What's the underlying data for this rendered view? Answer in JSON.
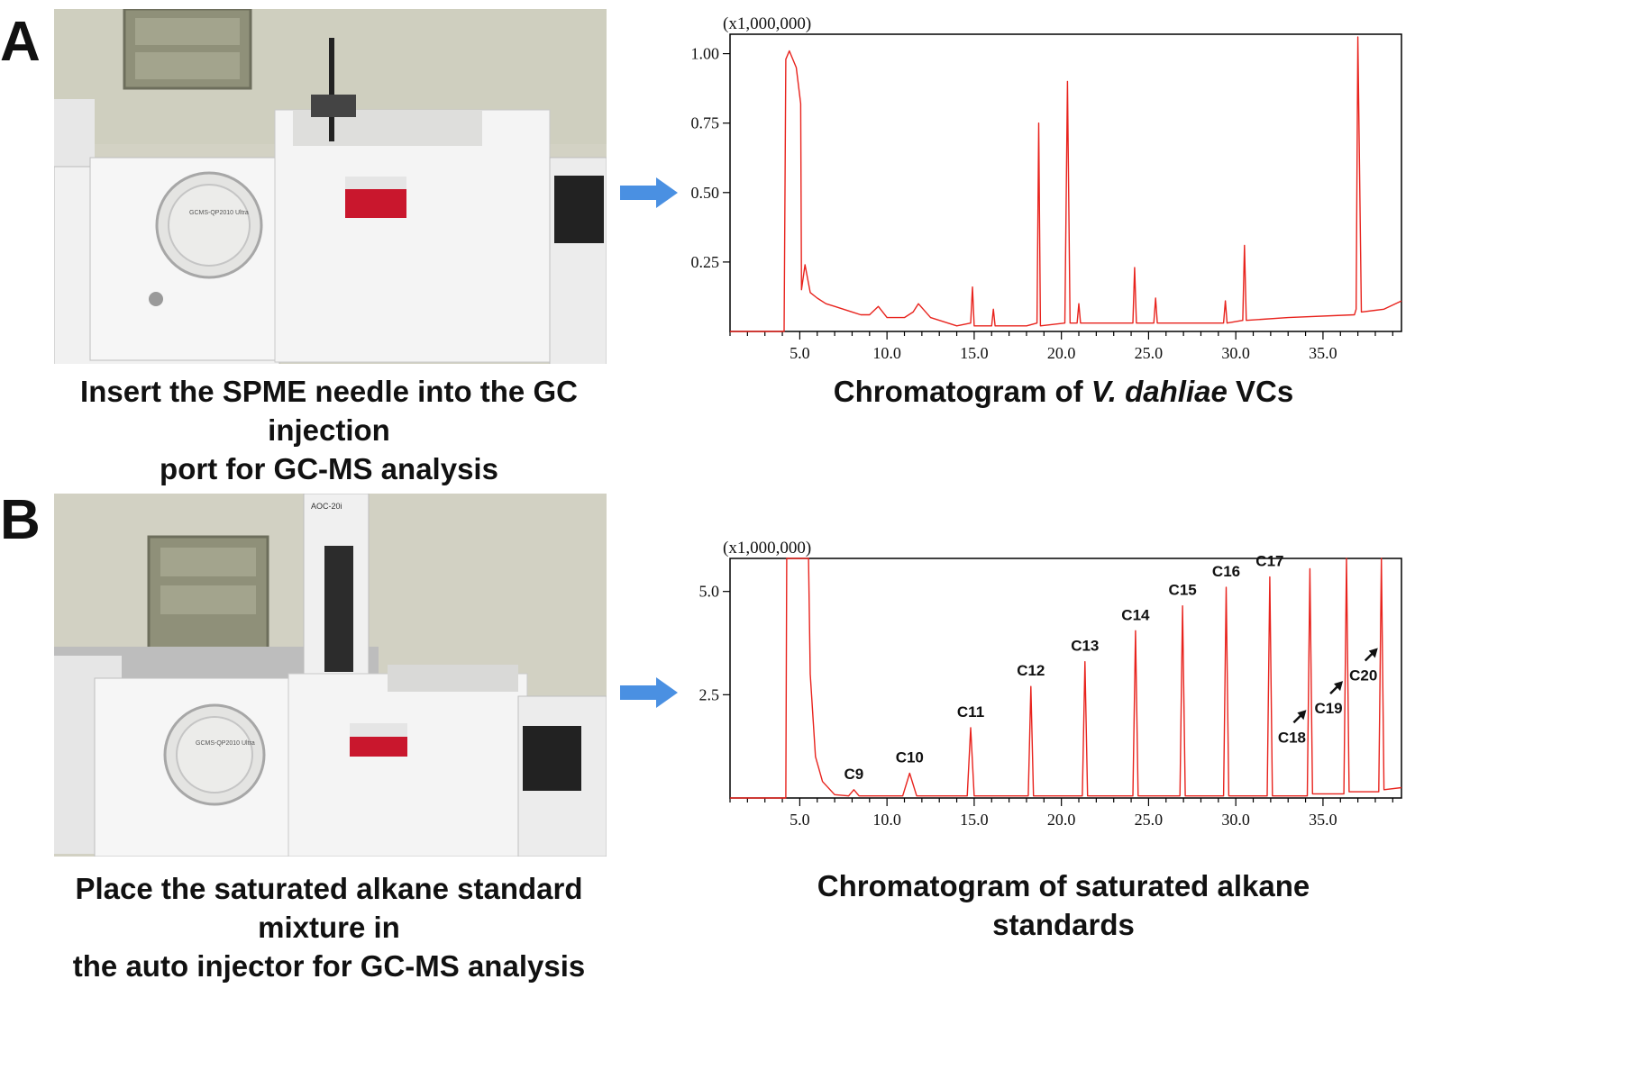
{
  "panels": [
    {
      "letter": "A",
      "photo_caption_line1": "Insert the SPME needle into the GC injection",
      "photo_caption_line2": "port for GC-MS analysis",
      "photo_labels": {
        "front_label": "GCMS-QP2010 Ultra"
      },
      "chart_caption_prefix": "Chromatogram of",
      "chart_caption_italic": "V. dahliae",
      "chart_caption_suffix": "VCs"
    },
    {
      "letter": "B",
      "photo_caption_line1": "Place the saturated alkane standard mixture in",
      "photo_caption_line2": "the auto injector for GC-MS analysis",
      "photo_labels": {
        "front_label": "GCMS-QP2010 Ultra",
        "injector_label": "AOC-20i"
      },
      "chart_caption": "Chromatogram of saturated alkane standards"
    }
  ],
  "colors": {
    "trace": "#e8231d",
    "arrow": "#4a90e2",
    "axis": "#000000"
  },
  "chart_data": [
    {
      "type": "line",
      "title": "",
      "scale_label": "(x1,000,000)",
      "xlim": [
        1.0,
        39.5
      ],
      "ylim": [
        0.0,
        1.07
      ],
      "xticks": [
        5.0,
        10.0,
        15.0,
        20.0,
        25.0,
        30.0,
        35.0
      ],
      "xtick_labels": [
        "5.0",
        "10.0",
        "15.0",
        "20.0",
        "25.0",
        "30.0",
        "35.0"
      ],
      "yticks": [
        0.25,
        0.5,
        0.75,
        1.0
      ],
      "ytick_labels": [
        "0.25",
        "0.50",
        "0.75",
        "1.00"
      ],
      "series": [
        {
          "x": [
            1.0,
            4.1,
            4.2,
            4.4,
            4.8,
            5.05,
            5.1,
            5.3,
            5.6,
            6.0,
            6.5,
            7.0,
            7.5,
            8.0,
            8.5,
            9.0,
            9.5,
            10.0,
            11.0,
            11.5,
            11.8,
            12.5,
            14.0,
            14.8,
            14.9,
            15.0,
            16.0,
            16.1,
            16.2,
            18.0,
            18.6,
            18.7,
            18.8,
            20.2,
            20.35,
            20.5,
            20.9,
            21.0,
            21.1,
            24.1,
            24.2,
            24.3,
            25.3,
            25.4,
            25.5,
            29.3,
            29.4,
            29.5,
            30.4,
            30.5,
            30.6,
            33.0,
            36.8,
            36.9,
            37.0,
            37.2,
            38.5,
            39.5
          ],
          "y": [
            0.0,
            0.0,
            0.98,
            1.01,
            0.95,
            0.82,
            0.15,
            0.24,
            0.14,
            0.12,
            0.1,
            0.09,
            0.08,
            0.07,
            0.06,
            0.06,
            0.09,
            0.05,
            0.05,
            0.07,
            0.1,
            0.05,
            0.02,
            0.03,
            0.16,
            0.02,
            0.02,
            0.08,
            0.02,
            0.02,
            0.03,
            0.75,
            0.02,
            0.03,
            0.9,
            0.03,
            0.03,
            0.1,
            0.03,
            0.03,
            0.23,
            0.03,
            0.03,
            0.12,
            0.03,
            0.03,
            0.11,
            0.03,
            0.04,
            0.31,
            0.04,
            0.05,
            0.06,
            0.08,
            1.06,
            0.07,
            0.08,
            0.11
          ]
        }
      ]
    },
    {
      "type": "line",
      "title": "",
      "scale_label": "(x1,000,000)",
      "xlim": [
        1.0,
        39.5
      ],
      "ylim": [
        0.0,
        5.8
      ],
      "xticks": [
        5.0,
        10.0,
        15.0,
        20.0,
        25.0,
        30.0,
        35.0
      ],
      "xtick_labels": [
        "5.0",
        "10.0",
        "15.0",
        "20.0",
        "25.0",
        "30.0",
        "35.0"
      ],
      "yticks": [
        2.5,
        5.0
      ],
      "ytick_labels": [
        "2.5",
        "5.0"
      ],
      "series": [
        {
          "x": [
            1.0,
            4.2,
            4.25,
            4.3,
            5.4,
            5.5,
            5.6,
            5.9,
            6.3,
            7.0,
            7.8,
            8.1,
            8.4,
            10.9,
            11.3,
            11.7,
            14.6,
            14.8,
            15.0,
            18.1,
            18.25,
            18.4,
            21.2,
            21.35,
            21.5,
            24.1,
            24.25,
            24.4,
            26.8,
            26.95,
            27.1,
            29.3,
            29.45,
            29.6,
            31.8,
            31.95,
            32.1,
            34.1,
            34.25,
            34.4,
            36.2,
            36.35,
            36.5,
            38.2,
            38.35,
            38.5,
            39.5
          ],
          "y": [
            0.0,
            0.0,
            5.9,
            5.9,
            5.9,
            5.9,
            3.0,
            1.0,
            0.4,
            0.08,
            0.05,
            0.2,
            0.05,
            0.05,
            0.6,
            0.05,
            0.05,
            1.7,
            0.05,
            0.05,
            2.7,
            0.05,
            0.05,
            3.3,
            0.05,
            0.05,
            4.05,
            0.05,
            0.05,
            4.65,
            0.05,
            0.05,
            5.1,
            0.05,
            0.05,
            5.35,
            0.05,
            0.05,
            5.55,
            0.1,
            0.1,
            5.9,
            0.15,
            0.15,
            5.9,
            0.2,
            0.25
          ]
        }
      ],
      "annotations": [
        {
          "label": "C9",
          "x": 8.1,
          "y": 0.2
        },
        {
          "label": "C10",
          "x": 11.3,
          "y": 0.6
        },
        {
          "label": "C11",
          "x": 14.8,
          "y": 1.7
        },
        {
          "label": "C12",
          "x": 18.25,
          "y": 2.7
        },
        {
          "label": "C13",
          "x": 21.35,
          "y": 3.3
        },
        {
          "label": "C14",
          "x": 24.25,
          "y": 4.05
        },
        {
          "label": "C15",
          "x": 26.95,
          "y": 4.65
        },
        {
          "label": "C16",
          "x": 29.45,
          "y": 5.1
        },
        {
          "label": "C17",
          "x": 31.95,
          "y": 5.35
        },
        {
          "label": "C18",
          "x": 34.25,
          "y": 2.0
        },
        {
          "label": "C19",
          "x": 36.35,
          "y": 2.7
        },
        {
          "label": "C20",
          "x": 38.35,
          "y": 3.5
        }
      ]
    }
  ]
}
